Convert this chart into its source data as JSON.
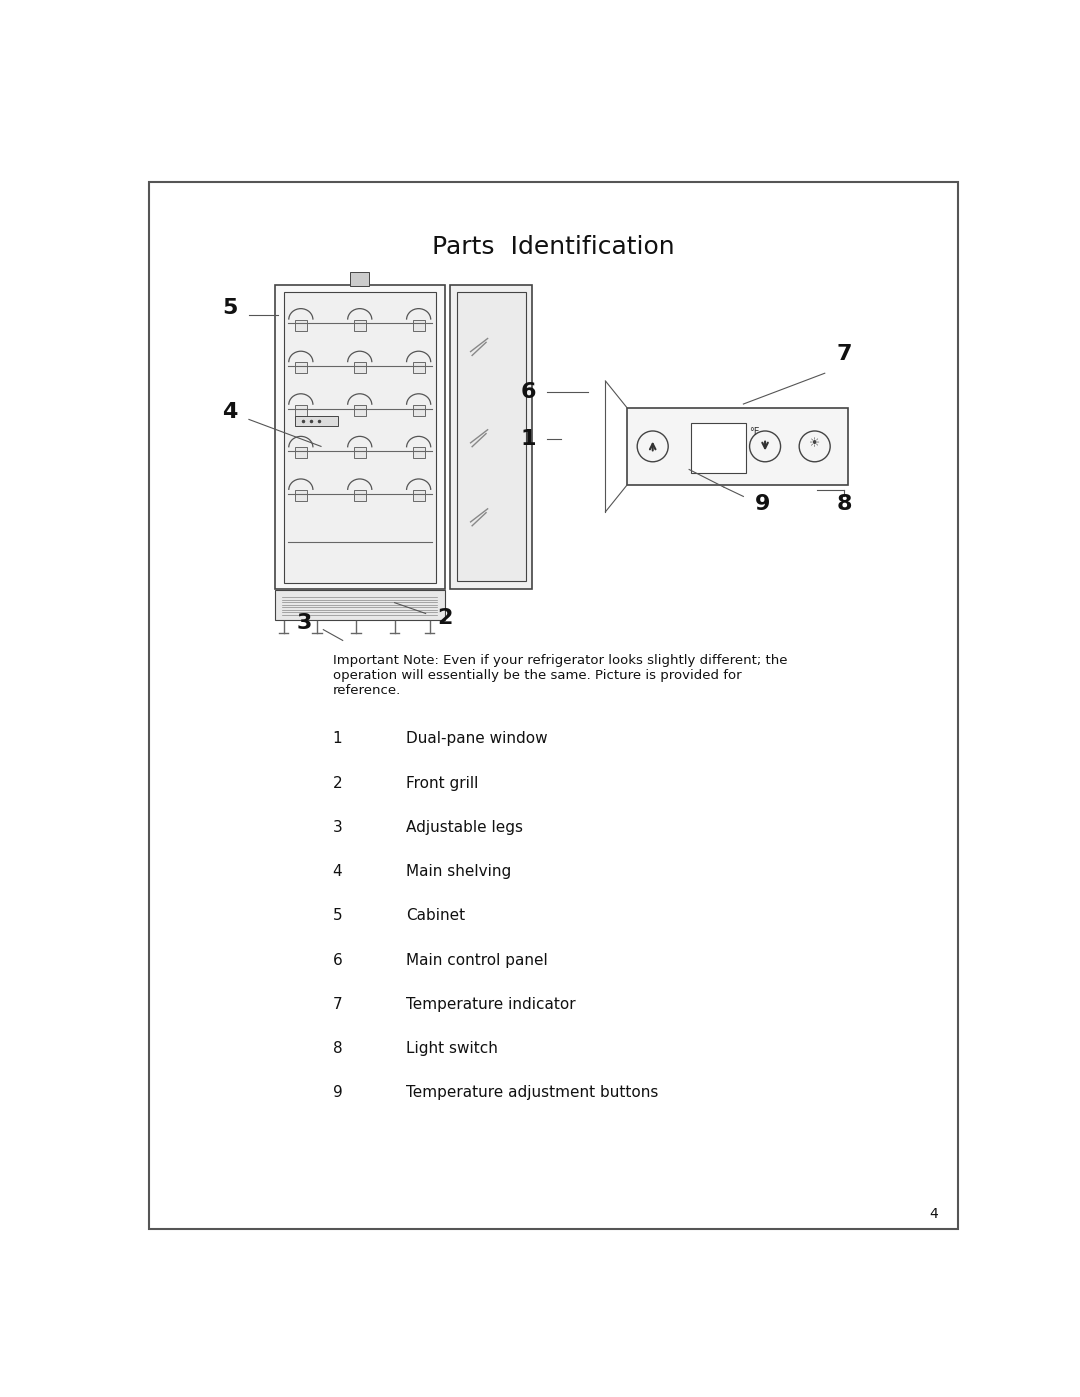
{
  "title": "Parts  Identification",
  "title_fontsize": 18,
  "bg_color": "#ffffff",
  "border_color": "#555555",
  "text_color": "#111111",
  "note_text": "Important Note: Even if your refrigerator looks slightly different; the\noperation will essentially be the same. Picture is provided for\nreference.",
  "parts": [
    {
      "num": "1",
      "desc": "Dual-pane window"
    },
    {
      "num": "2",
      "desc": "Front grill"
    },
    {
      "num": "3",
      "desc": "Adjustable legs"
    },
    {
      "num": "4",
      "desc": "Main shelving"
    },
    {
      "num": "5",
      "desc": "Cabinet"
    },
    {
      "num": "6",
      "desc": "Main control panel"
    },
    {
      "num": "7",
      "desc": "Temperature indicator"
    },
    {
      "num": "8",
      "desc": "Light switch"
    },
    {
      "num": "9",
      "desc": "Temperature adjustment buttons"
    }
  ],
  "page_number": "4"
}
